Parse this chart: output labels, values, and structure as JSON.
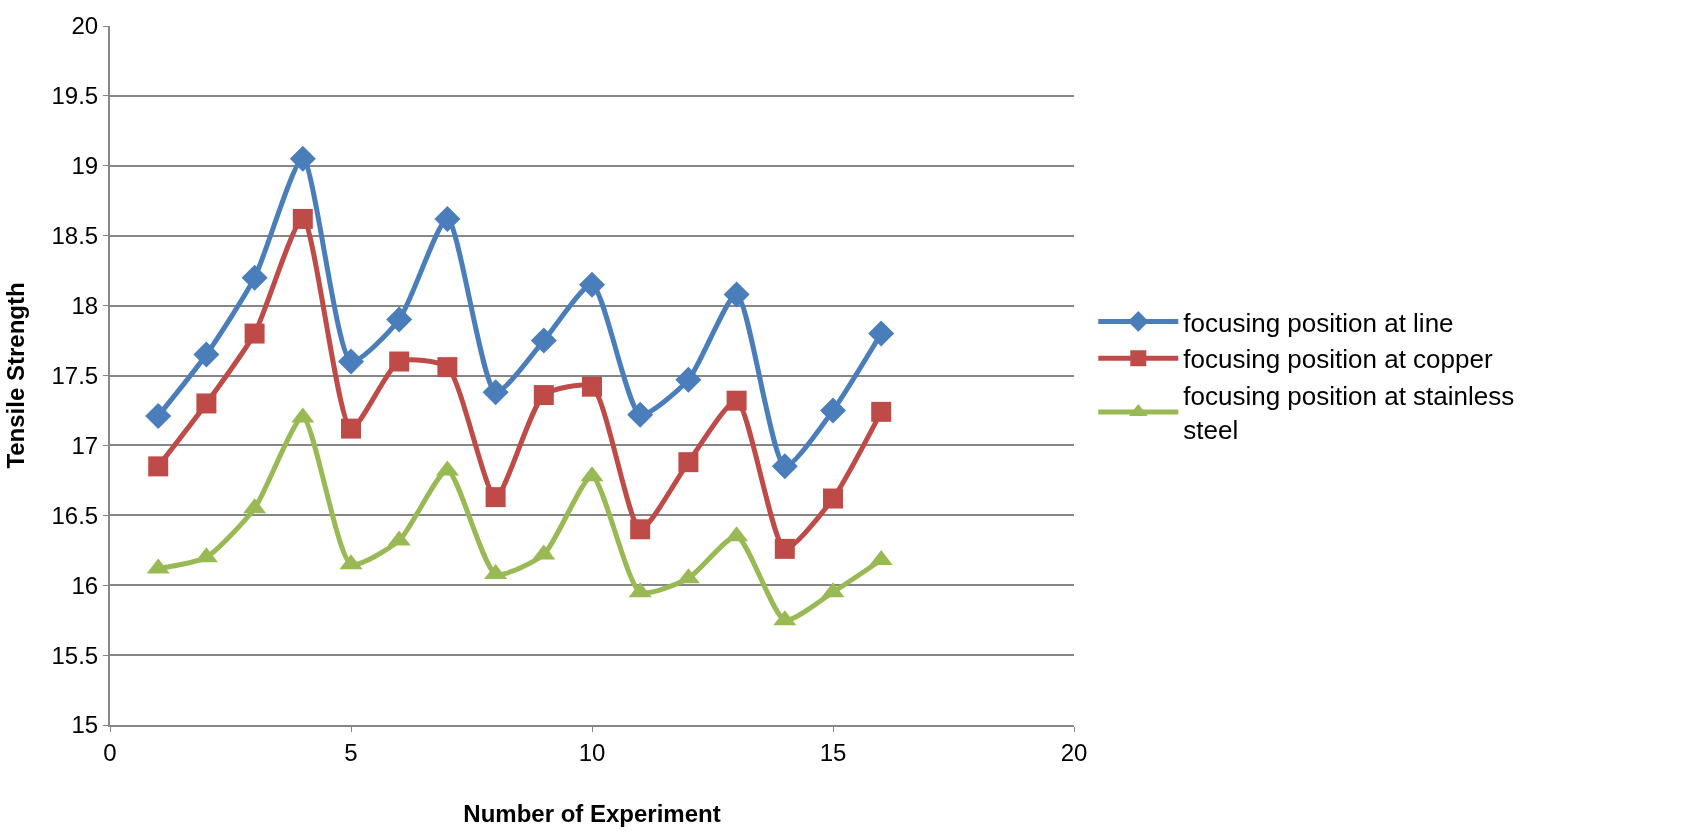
{
  "chart_data": {
    "type": "line",
    "xlabel": "Number of Experiment",
    "ylabel": "Tensile Strength",
    "x": [
      1,
      2,
      3,
      4,
      5,
      6,
      7,
      8,
      9,
      10,
      11,
      12,
      13,
      14,
      15,
      16
    ],
    "series": [
      {
        "name": "focusing position at line",
        "color": "#4a7ebb",
        "marker": "diamond",
        "values": [
          17.21,
          17.65,
          18.2,
          19.05,
          17.6,
          17.9,
          18.62,
          17.38,
          17.75,
          18.15,
          17.22,
          17.47,
          18.08,
          16.85,
          17.25,
          17.8
        ]
      },
      {
        "name": "focusing position at copper",
        "color": "#be4b48",
        "marker": "square",
        "values": [
          16.85,
          17.3,
          17.8,
          18.62,
          17.12,
          17.6,
          17.56,
          16.63,
          17.36,
          17.42,
          16.4,
          16.88,
          17.32,
          16.26,
          16.62,
          17.24
        ]
      },
      {
        "name": "focusing position at stainless steel",
        "color": "#98b954",
        "marker": "triangle",
        "values": [
          16.12,
          16.2,
          16.55,
          17.2,
          16.15,
          16.32,
          16.82,
          16.08,
          16.22,
          16.78,
          15.95,
          16.05,
          16.35,
          15.75,
          15.95,
          16.18
        ]
      }
    ],
    "xlim": [
      0,
      20
    ],
    "xticks": [
      0,
      5,
      10,
      15,
      20
    ],
    "ylim": [
      15,
      20
    ],
    "yticks": [
      15,
      15.5,
      16,
      16.5,
      17,
      17.5,
      18,
      18.5,
      19,
      19.5,
      20
    ],
    "grid": "y",
    "legend": "right",
    "line_style": "solid"
  }
}
